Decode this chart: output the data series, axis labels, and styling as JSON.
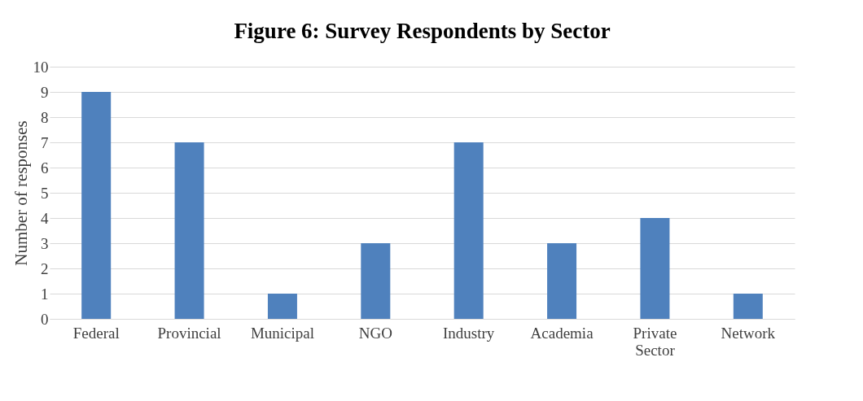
{
  "chart_data": {
    "type": "bar",
    "title": "Figure 6: Survey Respondents by Sector",
    "ylabel": "Number of responses",
    "categories": [
      "Federal",
      "Provincial",
      "Municipal",
      "NGO",
      "Industry",
      "Academia",
      "Private Sector",
      "Network"
    ],
    "values": [
      9,
      7,
      1,
      3,
      7,
      3,
      4,
      1
    ],
    "color": "#4f81bd",
    "ylim": [
      0,
      10
    ],
    "yticks": [
      0,
      1,
      2,
      3,
      4,
      5,
      6,
      7,
      8,
      9,
      10
    ],
    "grid": "y"
  }
}
